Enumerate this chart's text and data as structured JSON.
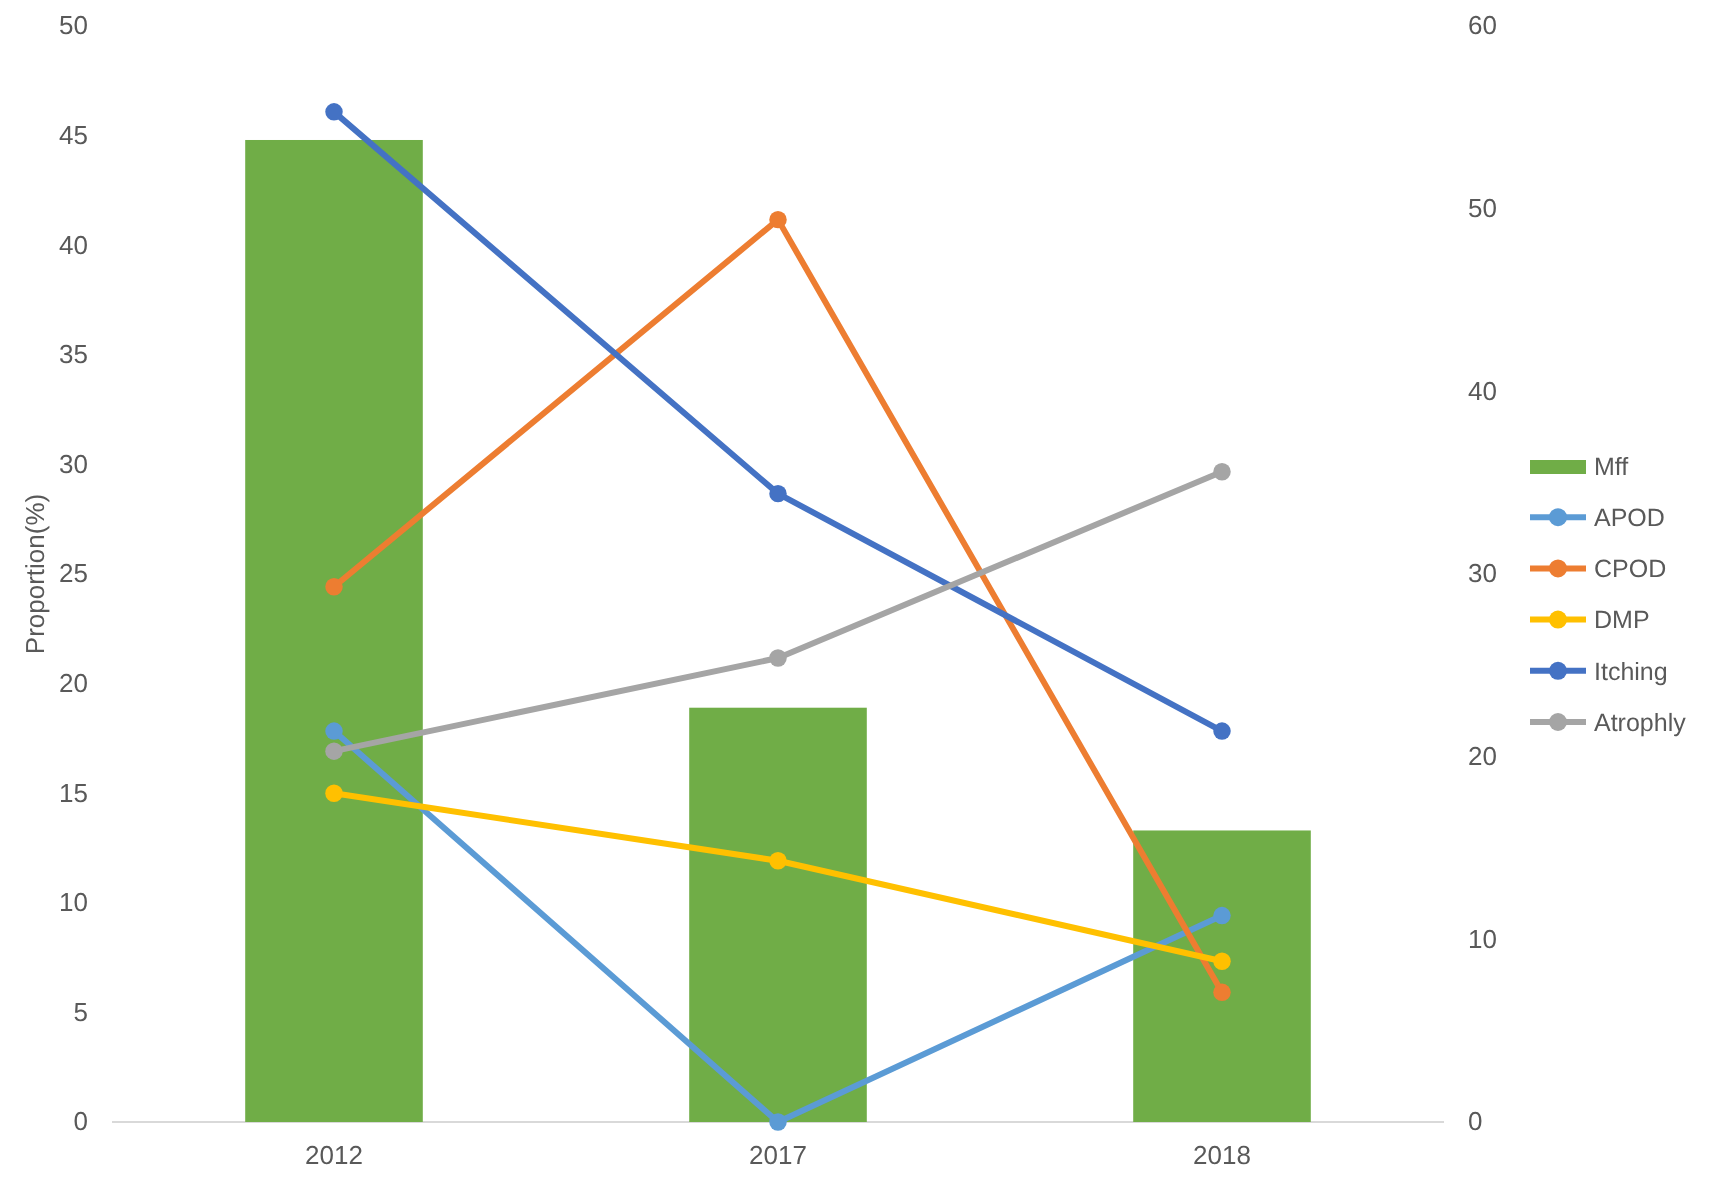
{
  "chart_data": {
    "type": "bar",
    "ylabel": "Proportion(%)",
    "categories": [
      "2012",
      "2017",
      "2018"
    ],
    "series": [
      {
        "name": "Mff",
        "color": "#70ad47",
        "values": [
          44.8,
          18.9,
          13.3
        ]
      },
      {
        "name": "APOD",
        "type": "line",
        "axis": "y2",
        "color": "#5b9bd5",
        "values": [
          21.4,
          0,
          11.3
        ]
      },
      {
        "name": "CPOD",
        "type": "line",
        "axis": "y2",
        "color": "#ed7d31",
        "values": [
          29.3,
          49.4,
          7.1
        ]
      },
      {
        "name": "DMP",
        "type": "line",
        "axis": "y2",
        "color": "#ffc000",
        "values": [
          18.0,
          14.3,
          8.8
        ]
      },
      {
        "name": "Itching",
        "type": "line",
        "axis": "y2",
        "color": "#4472c4",
        "values": [
          55.3,
          34.4,
          21.4
        ]
      },
      {
        "name": "Atrophly",
        "type": "line",
        "axis": "y2",
        "color": "#a5a5a5",
        "values": [
          20.3,
          25.4,
          35.6
        ]
      }
    ],
    "ylim": [
      0,
      50
    ],
    "yticks": [
      0,
      5,
      10,
      15,
      20,
      25,
      30,
      35,
      40,
      45,
      50
    ],
    "y2lim": [
      0,
      60
    ],
    "y2ticks": [
      0,
      10,
      20,
      30,
      40,
      50,
      60
    ],
    "legend": "right",
    "marker": "circle",
    "grid": false
  }
}
